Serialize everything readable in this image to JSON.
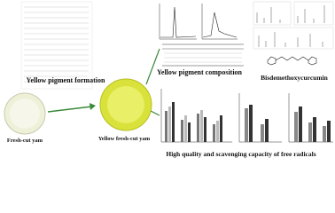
{
  "labels": {
    "fresh_cut_yam": "Fresh-cut yam",
    "pigment_formation": "Yellow pigment formation",
    "yellow_fresh_cut_yam": "Yellow fresh-cut yam",
    "pigment_composition": "Yellow pigment composition",
    "compound": "Bisdemethoxycurcumin",
    "quality": "High quality and scavenging capacity of free radicals"
  }
}
